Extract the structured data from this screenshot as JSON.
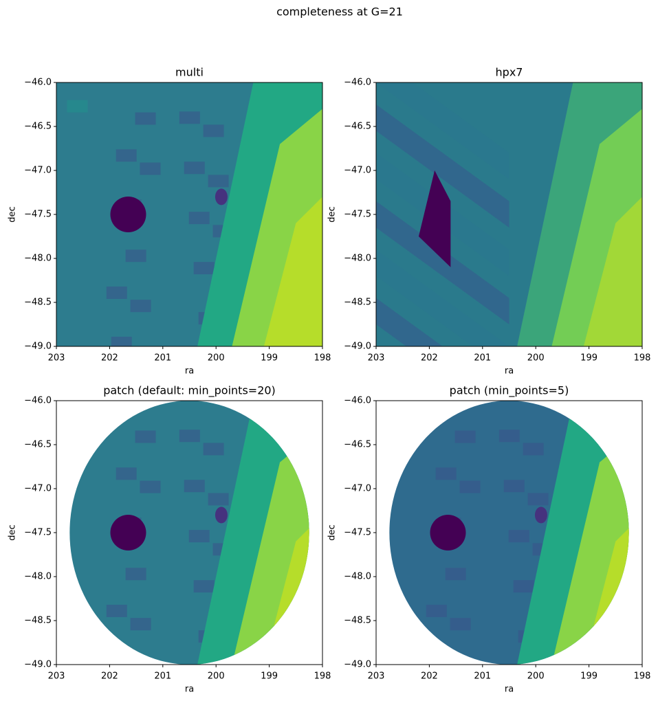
{
  "title": "completeness at G=21",
  "chart_data": [
    {
      "type": "heatmap",
      "title": "multi",
      "xlabel": "ra",
      "ylabel": "dec",
      "shape": "full",
      "xlim": [
        203,
        198
      ],
      "xticks": [
        203,
        202,
        201,
        200,
        199,
        198
      ],
      "ylim": [
        -49,
        -46
      ],
      "yticks": [
        {
          "value": -46.0,
          "label": "−46.0"
        },
        {
          "value": -46.5,
          "label": "−46.5"
        },
        {
          "value": -47.0,
          "label": "−47.0"
        },
        {
          "value": -47.5,
          "label": "−47.5"
        },
        {
          "value": -48.0,
          "label": "−48.0"
        },
        {
          "value": -48.5,
          "label": "−48.5"
        },
        {
          "value": -49.0,
          "label": "−49.0"
        }
      ]
    },
    {
      "type": "heatmap",
      "title": "hpx7",
      "xlabel": "ra",
      "ylabel": "dec",
      "shape": "full",
      "xlim": [
        203,
        198
      ],
      "xticks": [
        203,
        202,
        201,
        200,
        199,
        198
      ],
      "ylim": [
        -49,
        -46
      ],
      "yticks": [
        {
          "value": -46.0,
          "label": "−46.0"
        },
        {
          "value": -46.5,
          "label": "−46.5"
        },
        {
          "value": -47.0,
          "label": "−47.0"
        },
        {
          "value": -47.5,
          "label": "−47.5"
        },
        {
          "value": -48.0,
          "label": "−48.0"
        },
        {
          "value": -48.5,
          "label": "−48.5"
        },
        {
          "value": -49.0,
          "label": "−49.0"
        }
      ]
    },
    {
      "type": "heatmap",
      "title": "patch (default: min_points=20)",
      "xlabel": "ra",
      "ylabel": "dec",
      "shape": "disk",
      "xlim": [
        203,
        198
      ],
      "xticks": [
        203,
        202,
        201,
        200,
        199,
        198
      ],
      "ylim": [
        -49,
        -46
      ],
      "yticks": [
        {
          "value": -46.0,
          "label": "−46.0"
        },
        {
          "value": -46.5,
          "label": "−46.5"
        },
        {
          "value": -47.0,
          "label": "−47.0"
        },
        {
          "value": -47.5,
          "label": "−47.5"
        },
        {
          "value": -48.0,
          "label": "−48.0"
        },
        {
          "value": -48.5,
          "label": "−48.5"
        },
        {
          "value": -49.0,
          "label": "−49.0"
        }
      ]
    },
    {
      "type": "heatmap",
      "title": "patch (min_points=5)",
      "xlabel": "ra",
      "ylabel": "dec",
      "shape": "disk",
      "xlim": [
        203,
        198
      ],
      "xticks": [
        203,
        202,
        201,
        200,
        199,
        198
      ],
      "ylim": [
        -49,
        -46
      ],
      "yticks": [
        {
          "value": -46.0,
          "label": "−46.0"
        },
        {
          "value": -46.5,
          "label": "−46.5"
        },
        {
          "value": -47.0,
          "label": "−47.0"
        },
        {
          "value": -47.5,
          "label": "−47.5"
        },
        {
          "value": -48.0,
          "label": "−48.0"
        },
        {
          "value": -48.5,
          "label": "−48.5"
        },
        {
          "value": -49.0,
          "label": "−49.0"
        }
      ]
    }
  ]
}
